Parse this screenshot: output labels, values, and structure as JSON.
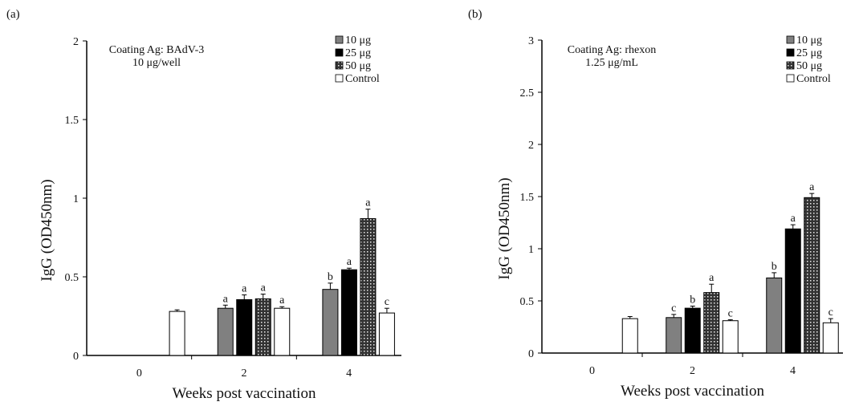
{
  "colors": {
    "10ug": "#808080",
    "25ug": "#000000",
    "50ug": "pattern-dotted-dark",
    "control": "#ffffff"
  },
  "chart_data": [
    {
      "type": "bar",
      "panel_label": "(a)",
      "annotation": [
        "Coating Ag: BAdV-3",
        "10 μg/well"
      ],
      "xlabel": "Weeks post vaccination",
      "ylabel": "IgG (OD450nm)",
      "categories": [
        "0",
        "2",
        "4"
      ],
      "ylim": [
        0,
        2
      ],
      "yticks": [
        "0",
        "0.5",
        "1",
        "1.5",
        "2"
      ],
      "ytick_values": [
        0,
        0.5,
        1,
        1.5,
        2
      ],
      "legend": [
        "10 μg",
        "25 μg",
        "50 μg",
        "Control"
      ],
      "legend_placement": "top-right",
      "series": [
        {
          "name": "10 μg",
          "values": [
            null,
            0.3,
            0.42
          ],
          "errors": [
            null,
            0.02,
            0.04
          ],
          "letters": [
            null,
            "a",
            "b"
          ]
        },
        {
          "name": "25 μg",
          "values": [
            null,
            0.355,
            0.545
          ],
          "errors": [
            null,
            0.03,
            0.01
          ],
          "letters": [
            null,
            "a",
            "a"
          ]
        },
        {
          "name": "50 μg",
          "values": [
            null,
            0.36,
            0.87
          ],
          "errors": [
            null,
            0.03,
            0.06
          ],
          "letters": [
            null,
            "a",
            "a"
          ]
        },
        {
          "name": "Control",
          "values": [
            0.28,
            0.3,
            0.27
          ],
          "errors": [
            0.01,
            0.01,
            0.03
          ],
          "letters": [
            null,
            "a",
            "c"
          ]
        }
      ]
    },
    {
      "type": "bar",
      "panel_label": "(b)",
      "annotation": [
        "Coating Ag: rhexon",
        "1.25 μg/mL"
      ],
      "xlabel": "Weeks post vaccination",
      "ylabel": "IgG (OD450nm)",
      "categories": [
        "0",
        "2",
        "4"
      ],
      "ylim": [
        0,
        3
      ],
      "yticks": [
        "0",
        "0.5",
        "1",
        "1.5",
        "2",
        "2.5",
        "3"
      ],
      "ytick_values": [
        0,
        0.5,
        1,
        1.5,
        2,
        2.5,
        3
      ],
      "legend": [
        "10 μg",
        "25 μg",
        "50 μg",
        "Control"
      ],
      "legend_placement": "top-right",
      "series": [
        {
          "name": "10 μg",
          "values": [
            null,
            0.34,
            0.72
          ],
          "errors": [
            null,
            0.03,
            0.05
          ],
          "letters": [
            null,
            "c",
            "b"
          ]
        },
        {
          "name": "25 μg",
          "values": [
            null,
            0.43,
            1.19
          ],
          "errors": [
            null,
            0.02,
            0.04
          ],
          "letters": [
            null,
            "b",
            "a"
          ]
        },
        {
          "name": "50 μg",
          "values": [
            null,
            0.58,
            1.49
          ],
          "errors": [
            null,
            0.08,
            0.04
          ],
          "letters": [
            null,
            "a",
            "a"
          ]
        },
        {
          "name": "Control",
          "values": [
            0.33,
            0.31,
            0.29
          ],
          "errors": [
            0.02,
            0.01,
            0.04
          ],
          "letters": [
            null,
            "c",
            "c"
          ]
        }
      ]
    }
  ]
}
